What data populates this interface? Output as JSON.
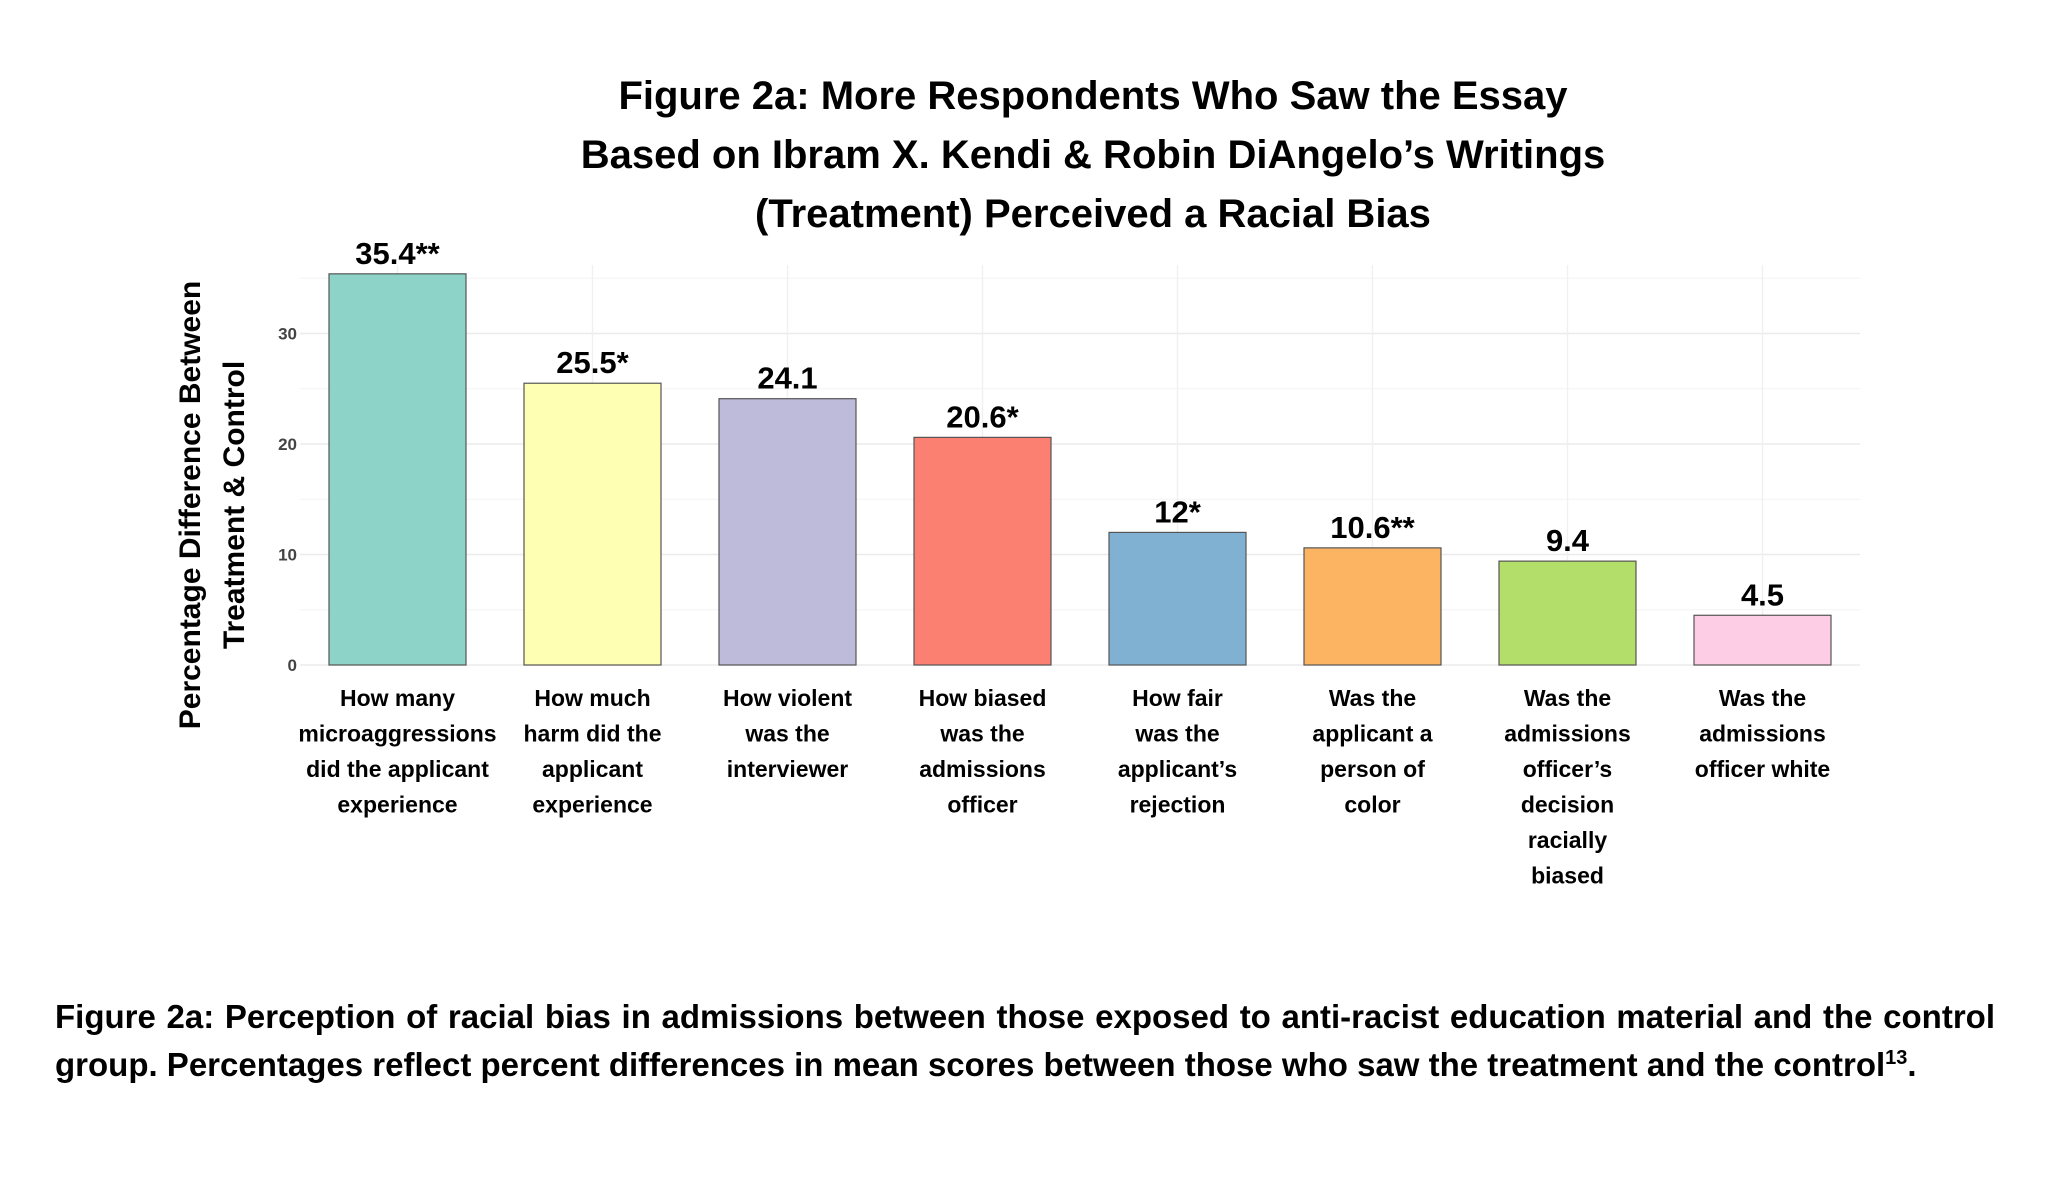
{
  "chart_data": {
    "type": "bar",
    "title": [
      "Figure 2a: More Respondents Who Saw the Essay",
      "Based on Ibram X. Kendi & Robin DiAngelo’s Writings",
      "(Treatment) Perceived a Racial Bias"
    ],
    "ylabel": [
      "Percentage Difference Between",
      "Treatment & Control"
    ],
    "xlabel": "",
    "ylim": [
      0,
      37
    ],
    "yticks": [
      0,
      10,
      20,
      30
    ],
    "grid": true,
    "legend": "none",
    "categories": [
      [
        "How many",
        "microaggressions",
        "did the applicant",
        "experience"
      ],
      [
        "How much",
        "harm did the",
        "applicant",
        "experience"
      ],
      [
        "How violent",
        "was the",
        "interviewer"
      ],
      [
        "How biased",
        "was the",
        "admissions",
        "officer"
      ],
      [
        "How fair",
        "was the",
        "applicant’s",
        "rejection"
      ],
      [
        "Was the",
        "applicant a",
        "person of",
        "color"
      ],
      [
        "Was the",
        "admissions",
        "officer’s",
        "decision",
        "racially",
        "biased"
      ],
      [
        "Was the",
        "admissions",
        "officer white"
      ]
    ],
    "values": [
      35.4,
      25.5,
      24.1,
      20.6,
      12,
      10.6,
      9.4,
      4.5
    ],
    "labels": [
      "35.4**",
      "25.5*",
      "24.1",
      "20.6*",
      "12*",
      "10.6**",
      "9.4",
      "4.5"
    ],
    "colors": [
      "#8dd3c7",
      "#ffffb3",
      "#bebada",
      "#fb8072",
      "#80b1d3",
      "#fdb462",
      "#b3de69",
      "#fccde5"
    ]
  },
  "caption": {
    "text": "Figure 2a: Perception of racial bias in admissions between those exposed to anti-racist education material and the control group. Percentages reflect percent differences in mean scores between those who saw the treatment and the control",
    "footnote": "13",
    "end": "."
  }
}
